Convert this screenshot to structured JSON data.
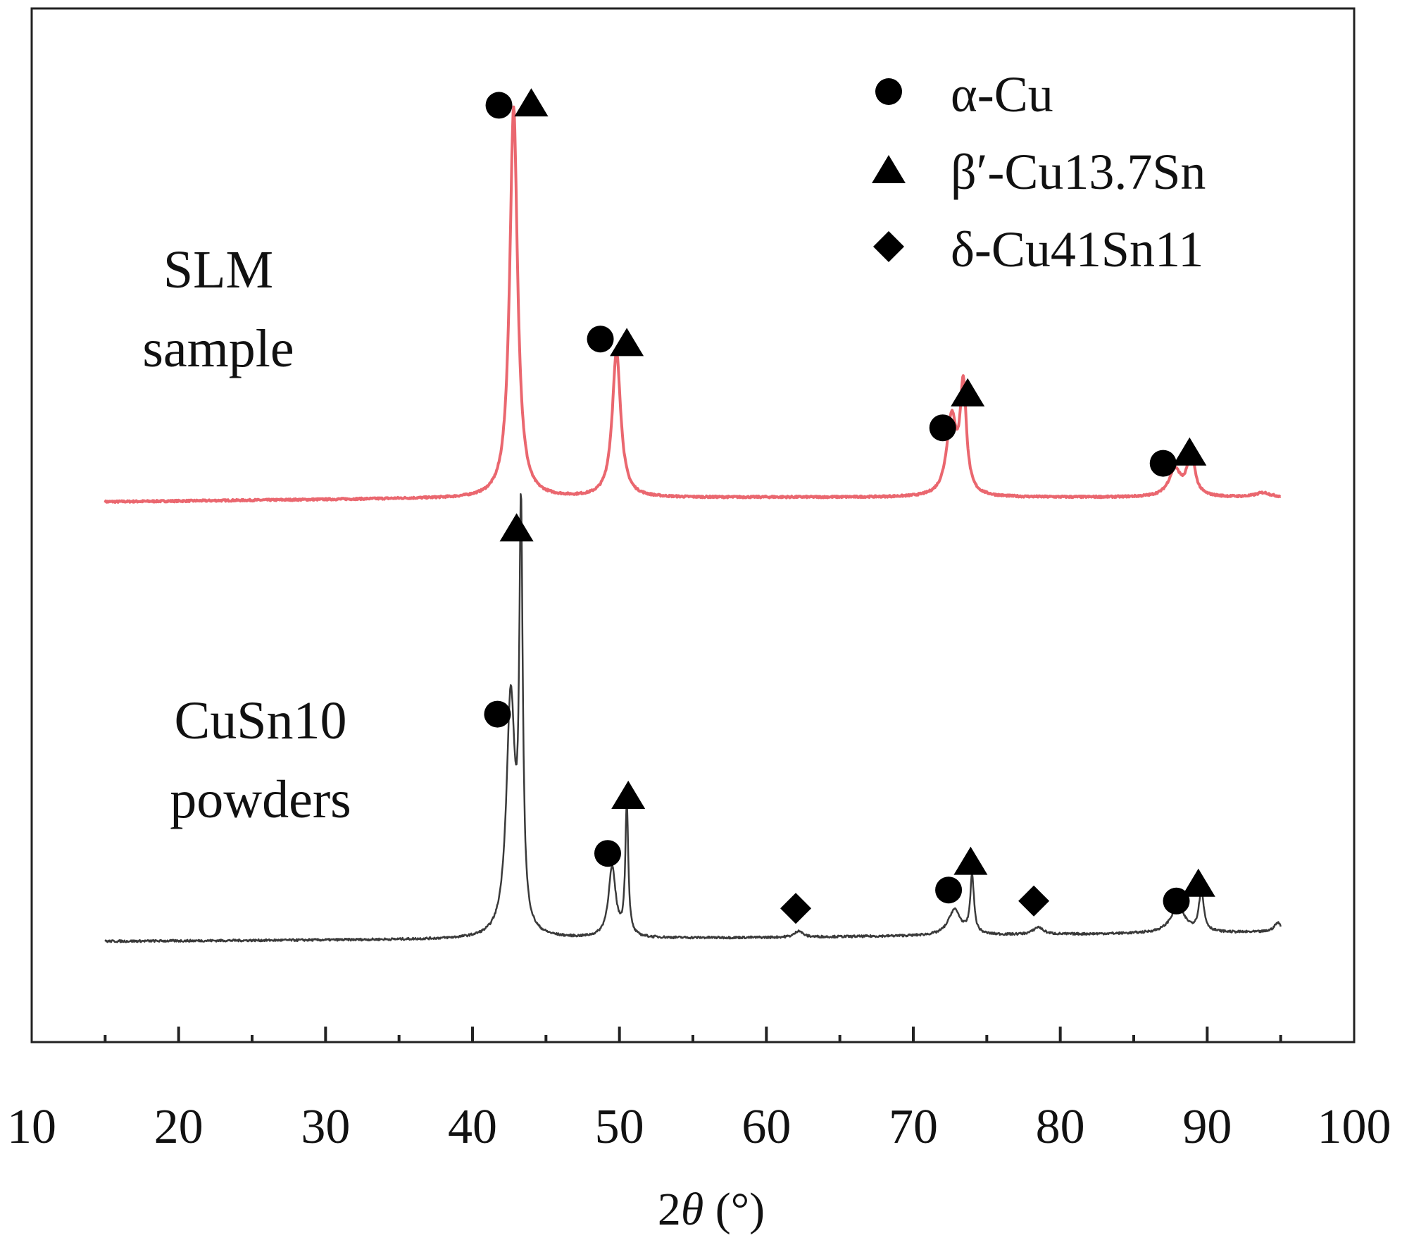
{
  "chart_data": {
    "type": "line",
    "xlabel_prefix": "2",
    "xlabel_symbol": "θ",
    "xlabel_suffix": " (°)",
    "xlim": [
      10,
      100
    ],
    "x_ticks": [
      10,
      20,
      30,
      40,
      50,
      60,
      70,
      80,
      90,
      100
    ],
    "x_tick_labels": [
      "10",
      "20",
      "30",
      "40",
      "50",
      "60",
      "70",
      "80",
      "90",
      "100"
    ],
    "y_axis_shown": false,
    "grid": false,
    "legend_position": "top-right",
    "legend": [
      {
        "marker": "circle",
        "label": "α-Cu"
      },
      {
        "marker": "triangle",
        "label": "β′-Cu13.7Sn"
      },
      {
        "marker": "diamond",
        "label": "δ-Cu41Sn11"
      }
    ],
    "series": [
      {
        "name_lines": [
          "SLM",
          "sample"
        ],
        "color": "#e8575f",
        "baseline": 0.0,
        "baseline_drift": [
          [
            15,
            -0.1
          ],
          [
            35,
            0.0
          ],
          [
            60,
            0.05
          ],
          [
            95,
            0.05
          ]
        ],
        "peaks": [
          {
            "x": 42.8,
            "height": 13.2,
            "width": 0.32
          },
          {
            "x": 49.8,
            "height": 4.9,
            "width": 0.35
          },
          {
            "x": 72.6,
            "height": 2.6,
            "width": 0.4
          },
          {
            "x": 73.4,
            "height": 3.6,
            "width": 0.25
          },
          {
            "x": 87.8,
            "height": 0.9,
            "width": 0.5
          },
          {
            "x": 88.9,
            "height": 1.5,
            "width": 0.3
          },
          {
            "x": 93.8,
            "height": 0.15,
            "width": 0.6
          }
        ],
        "markers": [
          {
            "phase": "α-Cu",
            "shape": "circle",
            "x": 41.8,
            "y": 13.3
          },
          {
            "phase": "β′-Cu13.7Sn",
            "shape": "triangle",
            "x": 44.0,
            "y": 13.4
          },
          {
            "phase": "α-Cu",
            "shape": "circle",
            "x": 48.7,
            "y": 5.4
          },
          {
            "phase": "β′-Cu13.7Sn",
            "shape": "triangle",
            "x": 50.5,
            "y": 5.3
          },
          {
            "phase": "α-Cu",
            "shape": "circle",
            "x": 72.0,
            "y": 2.4
          },
          {
            "phase": "β′-Cu13.7Sn",
            "shape": "triangle",
            "x": 73.7,
            "y": 3.6
          },
          {
            "phase": "α-Cu",
            "shape": "circle",
            "x": 87.0,
            "y": 1.2
          },
          {
            "phase": "β′-Cu13.7Sn",
            "shape": "triangle",
            "x": 88.8,
            "y": 1.6
          }
        ]
      },
      {
        "name_lines": [
          "CuSn10",
          "powders"
        ],
        "color": "#3a3a3a",
        "baseline": 0.0,
        "baseline_drift": [
          [
            15,
            0.0
          ],
          [
            60,
            0.1
          ],
          [
            95,
            0.25
          ]
        ],
        "peaks": [
          {
            "x": 42.6,
            "height": 6.5,
            "width": 0.35
          },
          {
            "x": 43.3,
            "height": 11.0,
            "width": 0.14
          },
          {
            "x": 49.5,
            "height": 1.9,
            "width": 0.3
          },
          {
            "x": 50.5,
            "height": 3.6,
            "width": 0.12
          },
          {
            "x": 62.2,
            "height": 0.18,
            "width": 0.3
          },
          {
            "x": 72.8,
            "height": 0.7,
            "width": 0.5
          },
          {
            "x": 74.0,
            "height": 1.6,
            "width": 0.15
          },
          {
            "x": 78.5,
            "height": 0.2,
            "width": 0.4
          },
          {
            "x": 88.0,
            "height": 0.7,
            "width": 0.6
          },
          {
            "x": 89.6,
            "height": 1.1,
            "width": 0.2
          },
          {
            "x": 94.8,
            "height": 0.25,
            "width": 0.3
          }
        ],
        "markers": [
          {
            "phase": "β′-Cu13.7Sn",
            "shape": "triangle",
            "x": 43.0,
            "y": 11.3
          },
          {
            "phase": "α-Cu",
            "shape": "circle",
            "x": 41.7,
            "y": 6.2
          },
          {
            "phase": "β′-Cu13.7Sn",
            "shape": "triangle",
            "x": 50.6,
            "y": 4.0
          },
          {
            "phase": "α-Cu",
            "shape": "circle",
            "x": 49.2,
            "y": 2.4
          },
          {
            "phase": "δ-Cu41Sn11",
            "shape": "diamond",
            "x": 62.0,
            "y": 0.9
          },
          {
            "phase": "α-Cu",
            "shape": "circle",
            "x": 72.4,
            "y": 1.4
          },
          {
            "phase": "β′-Cu13.7Sn",
            "shape": "triangle",
            "x": 73.9,
            "y": 2.2
          },
          {
            "phase": "δ-Cu41Sn11",
            "shape": "diamond",
            "x": 78.2,
            "y": 1.1
          },
          {
            "phase": "α-Cu",
            "shape": "circle",
            "x": 87.9,
            "y": 1.1
          },
          {
            "phase": "β′-Cu13.7Sn",
            "shape": "triangle",
            "x": 89.4,
            "y": 1.6
          }
        ]
      }
    ]
  }
}
